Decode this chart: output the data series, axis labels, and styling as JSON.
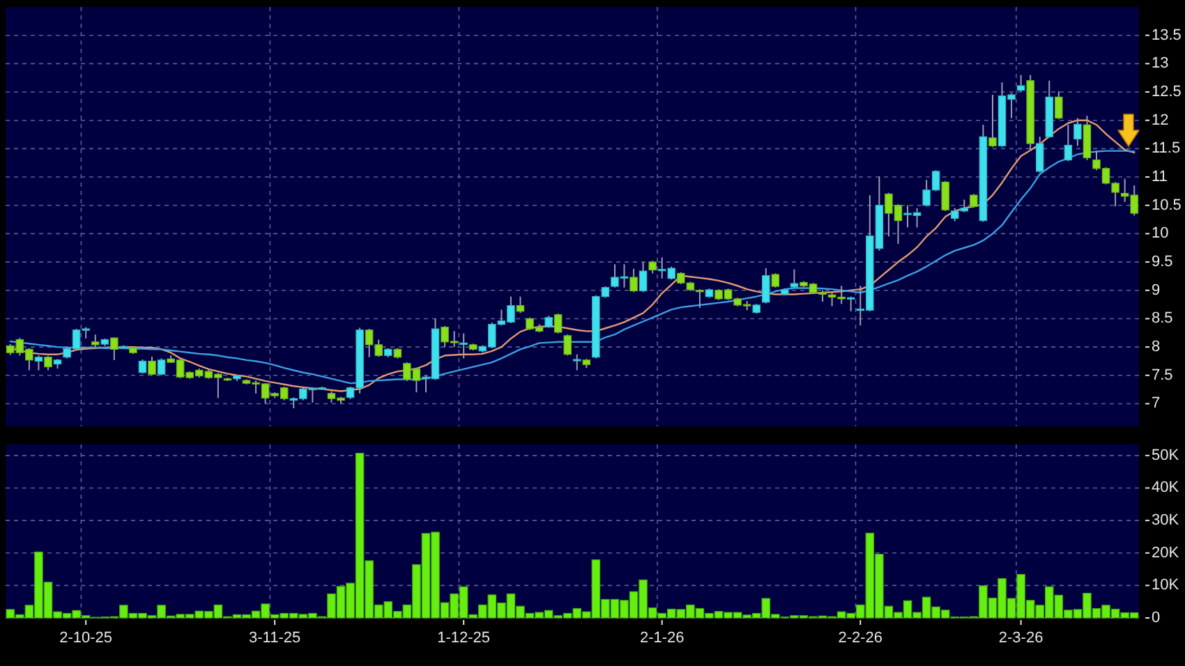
{
  "chart_data": [
    {
      "type": "candlestick",
      "categories": [
        null,
        null,
        null,
        null,
        null,
        null,
        null,
        null,
        null,
        null,
        null,
        null,
        null,
        null,
        null,
        null,
        null,
        null,
        null,
        null,
        null,
        null,
        null,
        null,
        null,
        null,
        null,
        null,
        null,
        null,
        null,
        null,
        null,
        null,
        null,
        null,
        null,
        null,
        null,
        null,
        null,
        null,
        null,
        null,
        null,
        null,
        null,
        null,
        null,
        null,
        null,
        null,
        null,
        null,
        null,
        null,
        null,
        null,
        null,
        null,
        null,
        null,
        null,
        null,
        null,
        null,
        null,
        null,
        null,
        null,
        null,
        null,
        null,
        null,
        null,
        null,
        null,
        null,
        null,
        null,
        null,
        null,
        null,
        null,
        null,
        null,
        null,
        null,
        null,
        null,
        null,
        null,
        null,
        null,
        null,
        null,
        null,
        null,
        null,
        null,
        null,
        null,
        null,
        null,
        null,
        null,
        null,
        null,
        null,
        null,
        null,
        null,
        null,
        null,
        null,
        null,
        null,
        null,
        null,
        null
      ],
      "ohlc": [
        [
          8.02,
          8.05,
          7.86,
          7.9
        ],
        [
          8.13,
          8.16,
          7.85,
          7.9
        ],
        [
          7.96,
          7.98,
          7.59,
          7.77
        ],
        [
          7.75,
          7.85,
          7.59,
          7.82
        ],
        [
          7.82,
          7.84,
          7.59,
          7.65
        ],
        [
          7.7,
          7.79,
          7.62,
          7.77
        ],
        [
          7.82,
          8.0,
          7.8,
          7.97
        ],
        [
          7.97,
          8.32,
          7.95,
          8.3
        ],
        [
          8.31,
          8.35,
          8.15,
          8.32
        ],
        [
          8.09,
          8.22,
          8.0,
          8.04
        ],
        [
          8.05,
          8.15,
          8.02,
          8.13
        ],
        [
          8.16,
          8.17,
          7.77,
          7.96
        ],
        [
          8.0,
          8.03,
          7.97,
          8.01
        ],
        [
          7.98,
          8.0,
          7.88,
          7.9
        ],
        [
          7.55,
          7.78,
          7.53,
          7.75
        ],
        [
          7.75,
          7.83,
          7.5,
          7.52
        ],
        [
          7.52,
          7.8,
          7.5,
          7.77
        ],
        [
          7.79,
          7.85,
          7.72,
          7.73
        ],
        [
          7.77,
          7.79,
          7.45,
          7.47
        ],
        [
          7.55,
          7.57,
          7.44,
          7.46
        ],
        [
          7.59,
          7.62,
          7.46,
          7.49
        ],
        [
          7.57,
          7.6,
          7.44,
          7.46
        ],
        [
          7.52,
          7.54,
          7.1,
          7.46
        ],
        [
          7.44,
          7.46,
          7.4,
          7.43
        ],
        [
          7.44,
          7.51,
          7.4,
          7.49
        ],
        [
          7.41,
          7.43,
          7.34,
          7.36
        ],
        [
          7.37,
          7.41,
          7.18,
          7.36
        ],
        [
          7.35,
          7.36,
          7.0,
          7.1
        ],
        [
          7.18,
          7.2,
          7.1,
          7.14
        ],
        [
          7.28,
          7.3,
          7.06,
          7.09
        ],
        [
          7.06,
          7.11,
          6.92,
          7.09
        ],
        [
          7.09,
          7.28,
          7.06,
          7.26
        ],
        [
          7.26,
          7.29,
          7.02,
          7.27
        ],
        [
          7.27,
          7.3,
          7.25,
          7.28
        ],
        [
          7.18,
          7.22,
          7.02,
          7.09
        ],
        [
          7.1,
          7.12,
          7.0,
          7.06
        ],
        [
          7.11,
          7.3,
          7.08,
          7.28
        ],
        [
          7.28,
          8.34,
          7.18,
          8.3
        ],
        [
          8.3,
          8.32,
          7.82,
          8.04
        ],
        [
          8.04,
          8.13,
          7.83,
          7.85
        ],
        [
          7.85,
          7.98,
          7.82,
          7.96
        ],
        [
          7.96,
          7.98,
          7.8,
          7.82
        ],
        [
          7.71,
          7.73,
          7.4,
          7.43
        ],
        [
          7.61,
          7.63,
          7.2,
          7.41
        ],
        [
          7.46,
          7.5,
          7.2,
          7.47
        ],
        [
          7.44,
          8.5,
          7.42,
          8.32
        ],
        [
          8.35,
          8.37,
          8.0,
          8.09
        ],
        [
          8.1,
          8.28,
          8.0,
          8.09
        ],
        [
          8.06,
          8.24,
          7.8,
          8.07
        ],
        [
          8.04,
          8.06,
          7.94,
          7.96
        ],
        [
          7.93,
          8.03,
          7.9,
          8.01
        ],
        [
          8.0,
          8.43,
          7.98,
          8.4
        ],
        [
          8.4,
          8.66,
          8.38,
          8.46
        ],
        [
          8.44,
          8.89,
          8.42,
          8.73
        ],
        [
          8.73,
          8.89,
          8.6,
          8.63
        ],
        [
          8.5,
          8.52,
          8.3,
          8.32
        ],
        [
          8.35,
          8.4,
          8.26,
          8.28
        ],
        [
          8.36,
          8.55,
          8.34,
          8.52
        ],
        [
          8.57,
          8.59,
          8.24,
          8.26
        ],
        [
          8.2,
          8.22,
          7.85,
          7.87
        ],
        [
          7.77,
          7.87,
          7.59,
          7.78
        ],
        [
          7.77,
          7.79,
          7.63,
          7.69
        ],
        [
          7.82,
          8.91,
          7.8,
          8.89
        ],
        [
          8.89,
          9.07,
          8.87,
          9.05
        ],
        [
          9.07,
          9.46,
          9.05,
          9.23
        ],
        [
          9.23,
          9.46,
          9.05,
          9.24
        ],
        [
          9.23,
          9.38,
          8.97,
          8.99
        ],
        [
          8.99,
          9.5,
          8.97,
          9.34
        ],
        [
          9.5,
          9.52,
          9.3,
          9.36
        ],
        [
          9.36,
          9.58,
          9.21,
          9.37
        ],
        [
          9.21,
          9.42,
          9.19,
          9.39
        ],
        [
          9.3,
          9.32,
          9.11,
          9.13
        ],
        [
          9.13,
          9.15,
          8.99,
          9.01
        ],
        [
          9.0,
          9.02,
          8.69,
          8.99
        ],
        [
          8.89,
          9.03,
          8.87,
          9.01
        ],
        [
          9.0,
          9.02,
          8.83,
          8.85
        ],
        [
          9.01,
          9.03,
          8.83,
          8.85
        ],
        [
          8.85,
          8.87,
          8.72,
          8.74
        ],
        [
          8.75,
          8.81,
          8.65,
          8.74
        ],
        [
          8.61,
          8.76,
          8.59,
          8.74
        ],
        [
          8.79,
          9.39,
          8.77,
          9.26
        ],
        [
          9.28,
          9.3,
          9.05,
          9.07
        ],
        [
          8.93,
          9.03,
          8.91,
          9.01
        ],
        [
          9.06,
          9.37,
          9.04,
          9.12
        ],
        [
          9.14,
          9.16,
          9.06,
          9.08
        ],
        [
          9.11,
          9.13,
          8.94,
          8.96
        ],
        [
          8.96,
          9.0,
          8.8,
          8.93
        ],
        [
          8.92,
          8.95,
          8.72,
          8.88
        ],
        [
          8.88,
          9.08,
          8.76,
          8.85
        ],
        [
          8.85,
          8.89,
          8.63,
          8.87
        ],
        [
          8.66,
          9.08,
          8.38,
          8.67
        ],
        [
          8.65,
          10.68,
          8.63,
          9.96
        ],
        [
          9.74,
          11.01,
          9.7,
          10.5
        ],
        [
          10.7,
          10.72,
          9.95,
          10.36
        ],
        [
          10.5,
          10.52,
          9.82,
          10.23
        ],
        [
          10.35,
          10.5,
          10.11,
          10.36
        ],
        [
          10.32,
          10.45,
          10.11,
          10.37
        ],
        [
          10.5,
          10.95,
          10.48,
          10.77
        ],
        [
          10.77,
          11.12,
          10.75,
          11.1
        ],
        [
          10.91,
          10.93,
          10.4,
          10.42
        ],
        [
          10.27,
          10.45,
          10.22,
          10.4
        ],
        [
          10.4,
          10.6,
          10.38,
          10.45
        ],
        [
          10.68,
          10.7,
          10.46,
          10.48
        ],
        [
          10.23,
          11.92,
          10.21,
          11.71
        ],
        [
          11.69,
          12.45,
          11.53,
          11.55
        ],
        [
          11.55,
          12.67,
          11.53,
          12.43
        ],
        [
          12.37,
          12.48,
          12.04,
          12.45
        ],
        [
          12.53,
          12.8,
          12.51,
          12.61
        ],
        [
          12.7,
          12.8,
          11.46,
          11.59
        ],
        [
          11.1,
          11.71,
          11.08,
          11.59
        ],
        [
          11.71,
          12.7,
          11.69,
          12.41
        ],
        [
          12.41,
          12.51,
          12.02,
          12.04
        ],
        [
          11.3,
          11.92,
          11.28,
          11.56
        ],
        [
          11.67,
          12.04,
          11.55,
          11.93
        ],
        [
          11.92,
          12.08,
          11.3,
          11.34
        ],
        [
          11.3,
          11.46,
          11.12,
          11.15
        ],
        [
          11.15,
          11.17,
          10.87,
          10.89
        ],
        [
          10.89,
          10.91,
          10.48,
          10.73
        ],
        [
          10.71,
          10.97,
          10.56,
          10.66
        ],
        [
          10.68,
          10.85,
          10.32,
          10.36
        ]
      ],
      "colors": [
        "#88e01c",
        "#88e01c",
        "#88e01c",
        "#3ee0ee",
        "#88e01c",
        "#3ee0ee",
        "#3ee0ee",
        "#3ee0ee",
        "#3ee0ee",
        "#88e01c",
        "#3ee0ee",
        "#88e01c",
        "#3ee0ee",
        "#88e01c",
        "#3ee0ee",
        "#88e01c",
        "#3ee0ee",
        "#88e01c",
        "#88e01c",
        "#88e01c",
        "#88e01c",
        "#88e01c",
        "#88e01c",
        "#88e01c",
        "#3ee0ee",
        "#88e01c",
        "#88e01c",
        "#88e01c",
        "#88e01c",
        "#88e01c",
        "#3ee0ee",
        "#3ee0ee",
        "#3ee0ee",
        "#3ee0ee",
        "#88e01c",
        "#88e01c",
        "#3ee0ee",
        "#3ee0ee",
        "#88e01c",
        "#88e01c",
        "#3ee0ee",
        "#88e01c",
        "#88e01c",
        "#88e01c",
        "#3ee0ee",
        "#3ee0ee",
        "#88e01c",
        "#88e01c",
        "#3ee0ee",
        "#88e01c",
        "#3ee0ee",
        "#3ee0ee",
        "#3ee0ee",
        "#3ee0ee",
        "#88e01c",
        "#88e01c",
        "#88e01c",
        "#3ee0ee",
        "#88e01c",
        "#88e01c",
        "#3ee0ee",
        "#88e01c",
        "#3ee0ee",
        "#3ee0ee",
        "#3ee0ee",
        "#3ee0ee",
        "#88e01c",
        "#3ee0ee",
        "#88e01c",
        "#3ee0ee",
        "#3ee0ee",
        "#88e01c",
        "#88e01c",
        "#88e01c",
        "#3ee0ee",
        "#88e01c",
        "#88e01c",
        "#88e01c",
        "#88e01c",
        "#3ee0ee",
        "#3ee0ee",
        "#88e01c",
        "#3ee0ee",
        "#3ee0ee",
        "#88e01c",
        "#88e01c",
        "#88e01c",
        "#88e01c",
        "#88e01c",
        "#3ee0ee",
        "#3ee0ee",
        "#3ee0ee",
        "#3ee0ee",
        "#88e01c",
        "#88e01c",
        "#3ee0ee",
        "#3ee0ee",
        "#3ee0ee",
        "#3ee0ee",
        "#88e01c",
        "#3ee0ee",
        "#3ee0ee",
        "#88e01c",
        "#3ee0ee",
        "#88e01c",
        "#3ee0ee",
        "#3ee0ee",
        "#3ee0ee",
        "#88e01c",
        "#3ee0ee",
        "#3ee0ee",
        "#88e01c",
        "#3ee0ee",
        "#3ee0ee",
        "#88e01c",
        "#88e01c",
        "#88e01c",
        "#88e01c",
        "#88e01c",
        "#88e01c"
      ],
      "series": [
        {
          "type": "line",
          "color": "#e39a72",
          "values": [
            7.98,
            7.94,
            7.9,
            7.88,
            7.87,
            7.87,
            7.9,
            7.95,
            7.97,
            7.98,
            7.99,
            7.99,
            8.0,
            8.0,
            7.99,
            7.99,
            7.96,
            7.9,
            7.8,
            7.74,
            7.67,
            7.61,
            7.57,
            7.53,
            7.5,
            7.48,
            7.44,
            7.4,
            7.37,
            7.34,
            7.31,
            7.29,
            7.27,
            7.26,
            7.24,
            7.22,
            7.24,
            7.26,
            7.33,
            7.45,
            7.52,
            7.57,
            7.59,
            7.62,
            7.68,
            7.78,
            7.85,
            7.86,
            7.87,
            7.87,
            7.88,
            7.93,
            8.0,
            8.15,
            8.27,
            8.33,
            8.36,
            8.36,
            8.36,
            8.33,
            8.3,
            8.28,
            8.28,
            8.33,
            8.38,
            8.44,
            8.52,
            8.6,
            8.75,
            8.95,
            9.1,
            9.26,
            9.24,
            9.22,
            9.2,
            9.17,
            9.13,
            9.08,
            9.02,
            8.98,
            8.95,
            8.93,
            8.93,
            8.93,
            8.94,
            8.95,
            8.96,
            8.97,
            8.98,
            9.0,
            9.02,
            9.08,
            9.22,
            9.36,
            9.5,
            9.62,
            9.76,
            9.95,
            10.1,
            10.3,
            10.4,
            10.45,
            10.48,
            10.52,
            10.68,
            10.9,
            11.15,
            11.37,
            11.47,
            11.58,
            11.72,
            11.85,
            11.95,
            12.0,
            12.0,
            11.92,
            11.76,
            11.62,
            11.48,
            11.43
          ]
        },
        {
          "type": "line",
          "color": "#3c9fe2",
          "values": [
            8.1,
            8.08,
            8.06,
            8.04,
            8.02,
            8.0,
            7.99,
            7.99,
            7.99,
            7.99,
            7.98,
            7.98,
            7.98,
            7.97,
            7.97,
            7.96,
            7.96,
            7.94,
            7.92,
            7.9,
            7.88,
            7.87,
            7.85,
            7.82,
            7.8,
            7.77,
            7.75,
            7.72,
            7.68,
            7.63,
            7.59,
            7.55,
            7.52,
            7.48,
            7.44,
            7.4,
            7.36,
            7.37,
            7.4,
            7.41,
            7.42,
            7.43,
            7.43,
            7.43,
            7.44,
            7.48,
            7.53,
            7.57,
            7.61,
            7.65,
            7.69,
            7.73,
            7.8,
            7.88,
            7.96,
            8.01,
            8.07,
            8.08,
            8.09,
            8.09,
            8.09,
            8.09,
            8.09,
            8.17,
            8.22,
            8.31,
            8.38,
            8.45,
            8.52,
            8.59,
            8.66,
            8.7,
            8.72,
            8.74,
            8.76,
            8.78,
            8.8,
            8.83,
            8.86,
            8.89,
            8.93,
            8.98,
            9.02,
            9.04,
            9.04,
            9.04,
            9.03,
            9.02,
            9.0,
            8.98,
            8.96,
            9.0,
            9.06,
            9.12,
            9.18,
            9.26,
            9.33,
            9.42,
            9.52,
            9.62,
            9.7,
            9.75,
            9.8,
            9.88,
            10.0,
            10.15,
            10.38,
            10.6,
            10.8,
            11.05,
            11.17,
            11.27,
            11.33,
            11.4,
            11.43,
            11.45,
            11.46,
            11.46,
            11.46,
            11.45
          ]
        }
      ],
      "ylim": [
        6.6,
        14.0
      ],
      "yticks": [
        7,
        7.5,
        8,
        8.5,
        9,
        9.5,
        10,
        10.5,
        11,
        11.5,
        12,
        12.5,
        13,
        13.5
      ],
      "grid": true
    },
    {
      "type": "bar",
      "categories": [
        null,
        null,
        null,
        null,
        null,
        null,
        null,
        null,
        "2-10-25",
        null,
        null,
        null,
        null,
        null,
        null,
        null,
        null,
        null,
        null,
        null,
        null,
        null,
        null,
        null,
        null,
        null,
        null,
        null,
        "3-11-25",
        null,
        null,
        null,
        null,
        null,
        null,
        null,
        null,
        null,
        null,
        null,
        null,
        null,
        null,
        null,
        null,
        null,
        null,
        null,
        "1-12-25",
        null,
        null,
        null,
        null,
        null,
        null,
        null,
        null,
        null,
        null,
        null,
        null,
        null,
        null,
        null,
        null,
        null,
        null,
        null,
        null,
        "2-1-26",
        null,
        null,
        null,
        null,
        null,
        null,
        null,
        null,
        null,
        null,
        null,
        null,
        null,
        null,
        null,
        null,
        null,
        null,
        null,
        null,
        "2-2-26",
        null,
        null,
        null,
        null,
        null,
        null,
        null,
        null,
        null,
        null,
        null,
        null,
        null,
        null,
        null,
        null,
        "2-3-26",
        null,
        null,
        null,
        null,
        null,
        null,
        null,
        null,
        null,
        null,
        null,
        null
      ],
      "values": [
        2600,
        1000,
        3900,
        20300,
        11000,
        1900,
        1400,
        2300,
        700,
        200,
        300,
        400,
        3900,
        1400,
        1400,
        700,
        3900,
        600,
        1100,
        1100,
        2100,
        2000,
        4000,
        400,
        1000,
        1000,
        2100,
        4300,
        1000,
        1400,
        1400,
        1100,
        1400,
        400,
        7400,
        9700,
        10700,
        50700,
        17600,
        4000,
        5000,
        2000,
        4000,
        16400,
        26000,
        26400,
        4700,
        7400,
        9600,
        1000,
        4000,
        7100,
        4600,
        7400,
        3600,
        1400,
        1700,
        2300,
        700,
        1400,
        2900,
        1900,
        17900,
        5700,
        5700,
        5400,
        8100,
        11700,
        3100,
        1400,
        2700,
        2600,
        4000,
        2900,
        1400,
        2000,
        1700,
        1700,
        900,
        1400,
        6000,
        1100,
        300,
        700,
        700,
        400,
        600,
        400,
        1900,
        1400,
        4000,
        26100,
        19600,
        3600,
        1700,
        5300,
        1700,
        6400,
        3400,
        2400,
        300,
        300,
        400,
        9900,
        6100,
        12100,
        6000,
        13400,
        5400,
        3900,
        9600,
        7000,
        2400,
        2600,
        7600,
        2900,
        3900,
        2700,
        1600,
        1600
      ],
      "color": "#66ee11",
      "ylim": [
        0,
        53400
      ],
      "yticks": [
        0,
        {
          "value": 10000,
          "label": "10K"
        },
        {
          "value": 20000,
          "label": "20K"
        },
        {
          "value": 30000,
          "label": "30K"
        },
        {
          "value": 40000,
          "label": "40K"
        },
        {
          "value": 50000,
          "label": "50K"
        }
      ],
      "grid": true
    }
  ]
}
